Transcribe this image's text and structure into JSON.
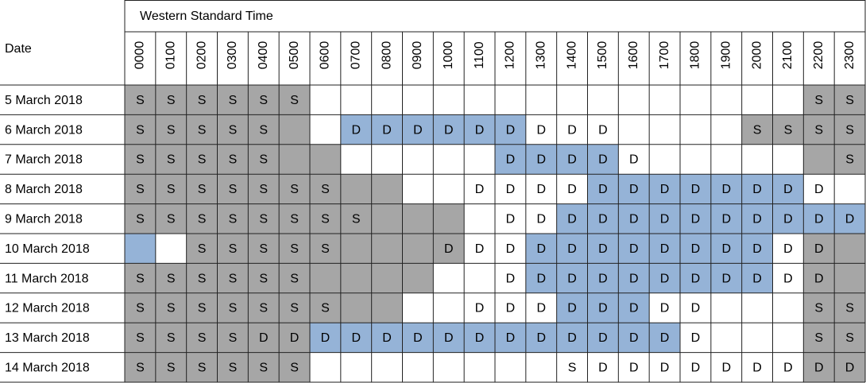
{
  "header": {
    "title": "Western Standard Time",
    "date_label": "Date",
    "hours": [
      "0000",
      "0100",
      "0200",
      "0300",
      "0400",
      "0500",
      "0600",
      "0700",
      "0800",
      "0900",
      "1000",
      "1100",
      "1200",
      "1300",
      "1400",
      "1500",
      "1600",
      "1700",
      "1800",
      "1900",
      "2000",
      "2100",
      "2200",
      "2300"
    ]
  },
  "rows": [
    {
      "date": "5 March 2018",
      "cells": [
        "S",
        "S",
        "S",
        "S",
        "S",
        "S",
        null,
        null,
        null,
        null,
        null,
        null,
        null,
        null,
        null,
        null,
        null,
        null,
        null,
        null,
        null,
        null,
        "S",
        "S"
      ],
      "fills": [
        "#a6a6a6",
        "#a6a6a6",
        "#a6a6a6",
        "#a6a6a6",
        "#a6a6a6",
        "#a6a6a6",
        "#ffffff",
        "#ffffff",
        "#ffffff",
        "#ffffff",
        "#ffffff",
        "#ffffff",
        "#ffffff",
        "#ffffff",
        "#ffffff",
        "#ffffff",
        "#ffffff",
        "#ffffff",
        "#ffffff",
        "#ffffff",
        "#ffffff",
        "#ffffff",
        "#a6a6a6",
        "#a6a6a6"
      ]
    },
    {
      "date": "6 March 2018",
      "cells": [
        "S",
        "S",
        "S",
        "S",
        "S",
        null,
        null,
        "D",
        "D",
        "D",
        "D",
        "D",
        "D",
        "D",
        "D",
        "D",
        null,
        null,
        null,
        null,
        "S",
        "S",
        "S",
        "S"
      ],
      "fills": [
        "#a6a6a6",
        "#a6a6a6",
        "#a6a6a6",
        "#a6a6a6",
        "#a6a6a6",
        "#a6a6a6",
        "#ffffff",
        "#95b3d7",
        "#95b3d7",
        "#95b3d7",
        "#95b3d7",
        "#95b3d7",
        "#95b3d7",
        "#ffffff",
        "#ffffff",
        "#ffffff",
        "#ffffff",
        "#ffffff",
        "#ffffff",
        "#ffffff",
        "#a6a6a6",
        "#a6a6a6",
        "#a6a6a6",
        "#a6a6a6"
      ]
    },
    {
      "date": "7 March 2018",
      "cells": [
        "S",
        "S",
        "S",
        "S",
        "S",
        null,
        null,
        null,
        null,
        null,
        null,
        null,
        "D",
        "D",
        "D",
        "D",
        "D",
        null,
        null,
        null,
        null,
        null,
        null,
        "S"
      ],
      "fills": [
        "#a6a6a6",
        "#a6a6a6",
        "#a6a6a6",
        "#a6a6a6",
        "#a6a6a6",
        "#a6a6a6",
        "#a6a6a6",
        "#ffffff",
        "#ffffff",
        "#ffffff",
        "#ffffff",
        "#ffffff",
        "#95b3d7",
        "#95b3d7",
        "#95b3d7",
        "#95b3d7",
        "#ffffff",
        "#ffffff",
        "#ffffff",
        "#ffffff",
        "#ffffff",
        "#ffffff",
        "#a6a6a6",
        "#a6a6a6"
      ]
    },
    {
      "date": "8 March 2018",
      "cells": [
        "S",
        "S",
        "S",
        "S",
        "S",
        "S",
        "S",
        null,
        null,
        null,
        null,
        "D",
        "D",
        "D",
        "D",
        "D",
        "D",
        "D",
        "D",
        "D",
        "D",
        "D",
        "D",
        null
      ],
      "fills": [
        "#a6a6a6",
        "#a6a6a6",
        "#a6a6a6",
        "#a6a6a6",
        "#a6a6a6",
        "#a6a6a6",
        "#a6a6a6",
        "#a6a6a6",
        "#a6a6a6",
        "#ffffff",
        "#ffffff",
        "#ffffff",
        "#ffffff",
        "#ffffff",
        "#ffffff",
        "#95b3d7",
        "#95b3d7",
        "#95b3d7",
        "#95b3d7",
        "#95b3d7",
        "#95b3d7",
        "#95b3d7",
        "#ffffff",
        "#ffffff"
      ]
    },
    {
      "date": "9 March 2018",
      "cells": [
        "S",
        "S",
        "S",
        "S",
        "S",
        "S",
        "S",
        "S",
        null,
        null,
        null,
        null,
        "D",
        "D",
        "D",
        "D",
        "D",
        "D",
        "D",
        "D",
        "D",
        "D",
        "D",
        "D"
      ],
      "fills": [
        "#a6a6a6",
        "#a6a6a6",
        "#a6a6a6",
        "#a6a6a6",
        "#a6a6a6",
        "#a6a6a6",
        "#a6a6a6",
        "#a6a6a6",
        "#a6a6a6",
        "#a6a6a6",
        "#a6a6a6",
        "#ffffff",
        "#ffffff",
        "#ffffff",
        "#95b3d7",
        "#95b3d7",
        "#95b3d7",
        "#95b3d7",
        "#95b3d7",
        "#95b3d7",
        "#95b3d7",
        "#95b3d7",
        "#95b3d7",
        "#95b3d7"
      ]
    },
    {
      "date": "10 March 2018",
      "cells": [
        null,
        null,
        "S",
        "S",
        "S",
        "S",
        "S",
        null,
        null,
        null,
        "D",
        "D",
        "D",
        "D",
        "D",
        "D",
        "D",
        "D",
        "D",
        "D",
        "D",
        "D",
        "D",
        null
      ],
      "fills": [
        "#95b3d7",
        "#ffffff",
        "#a6a6a6",
        "#a6a6a6",
        "#a6a6a6",
        "#a6a6a6",
        "#a6a6a6",
        "#a6a6a6",
        "#a6a6a6",
        "#a6a6a6",
        "#a6a6a6",
        "#ffffff",
        "#ffffff",
        "#95b3d7",
        "#95b3d7",
        "#95b3d7",
        "#95b3d7",
        "#95b3d7",
        "#95b3d7",
        "#95b3d7",
        "#95b3d7",
        "#ffffff",
        "#a6a6a6",
        "#a6a6a6"
      ]
    },
    {
      "date": "11 March 2018",
      "cells": [
        "S",
        "S",
        "S",
        "S",
        "S",
        "S",
        null,
        null,
        null,
        null,
        null,
        null,
        "D",
        "D",
        "D",
        "D",
        "D",
        "D",
        "D",
        "D",
        "D",
        "D",
        "D",
        null
      ],
      "fills": [
        "#a6a6a6",
        "#a6a6a6",
        "#a6a6a6",
        "#a6a6a6",
        "#a6a6a6",
        "#a6a6a6",
        "#a6a6a6",
        "#a6a6a6",
        "#a6a6a6",
        "#a6a6a6",
        "#ffffff",
        "#ffffff",
        "#ffffff",
        "#95b3d7",
        "#95b3d7",
        "#95b3d7",
        "#95b3d7",
        "#95b3d7",
        "#95b3d7",
        "#95b3d7",
        "#95b3d7",
        "#ffffff",
        "#a6a6a6",
        "#a6a6a6"
      ]
    },
    {
      "date": "12 March 2018",
      "cells": [
        "S",
        "S",
        "S",
        "S",
        "S",
        "S",
        "S",
        null,
        null,
        null,
        null,
        "D",
        "D",
        "D",
        "D",
        "D",
        "D",
        "D",
        "D",
        null,
        null,
        null,
        "S",
        "S"
      ],
      "fills": [
        "#a6a6a6",
        "#a6a6a6",
        "#a6a6a6",
        "#a6a6a6",
        "#a6a6a6",
        "#a6a6a6",
        "#a6a6a6",
        "#a6a6a6",
        "#a6a6a6",
        "#ffffff",
        "#ffffff",
        "#ffffff",
        "#ffffff",
        "#ffffff",
        "#95b3d7",
        "#95b3d7",
        "#95b3d7",
        "#ffffff",
        "#ffffff",
        "#ffffff",
        "#ffffff",
        "#ffffff",
        "#a6a6a6",
        "#a6a6a6"
      ]
    },
    {
      "date": "13 March 2018",
      "cells": [
        "S",
        "S",
        "S",
        "S",
        "D",
        "D",
        "D",
        "D",
        "D",
        "D",
        "D",
        "D",
        "D",
        "D",
        "D",
        "D",
        "D",
        "D",
        "D",
        null,
        null,
        null,
        "S",
        "S"
      ],
      "fills": [
        "#a6a6a6",
        "#a6a6a6",
        "#a6a6a6",
        "#a6a6a6",
        "#a6a6a6",
        "#a6a6a6",
        "#95b3d7",
        "#95b3d7",
        "#95b3d7",
        "#95b3d7",
        "#95b3d7",
        "#95b3d7",
        "#95b3d7",
        "#95b3d7",
        "#95b3d7",
        "#95b3d7",
        "#95b3d7",
        "#95b3d7",
        "#ffffff",
        "#ffffff",
        "#ffffff",
        "#ffffff",
        "#a6a6a6",
        "#a6a6a6"
      ]
    },
    {
      "date": "14 March 2018",
      "cells": [
        "S",
        "S",
        "S",
        "S",
        "S",
        "S",
        null,
        null,
        null,
        null,
        null,
        null,
        null,
        null,
        "S",
        "D",
        "D",
        "D",
        "D",
        "D",
        "D",
        "D",
        "D",
        "D"
      ],
      "fills": [
        "#a6a6a6",
        "#a6a6a6",
        "#a6a6a6",
        "#a6a6a6",
        "#a6a6a6",
        "#a6a6a6",
        "#ffffff",
        "#ffffff",
        "#ffffff",
        "#ffffff",
        "#ffffff",
        "#ffffff",
        "#ffffff",
        "#ffffff",
        "#ffffff",
        "#ffffff",
        "#ffffff",
        "#ffffff",
        "#ffffff",
        "#ffffff",
        "#ffffff",
        "#ffffff",
        "#a6a6a6",
        "#a6a6a6"
      ]
    }
  ]
}
